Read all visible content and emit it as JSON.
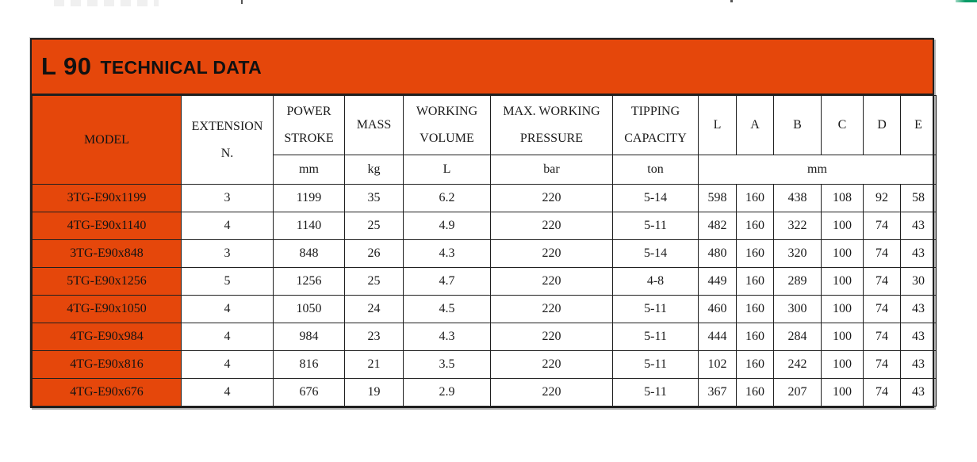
{
  "title": {
    "model": "L 90",
    "label": "TECHNICAL DATA"
  },
  "colors": {
    "accent_orange": "#E5470B",
    "grid_dark": "#1F1F1F",
    "row_separator": "#555555",
    "ink": "#1A1A1A",
    "artifact_green": "#0A9B67",
    "artifact_faint": "#ECECEC",
    "artifact_tick": "#555555"
  },
  "table": {
    "header": {
      "model": "MODEL",
      "extension": "EXTENSION N.",
      "groups": [
        {
          "label": "POWER STROKE",
          "unit": "mm"
        },
        {
          "label": "MASS",
          "unit": "kg"
        },
        {
          "label": "WORKING VOLUME",
          "unit": "L"
        },
        {
          "label": "MAX. WORKING PRESSURE",
          "unit": "bar"
        },
        {
          "label": "TIPPING CAPACITY",
          "unit": "ton"
        }
      ],
      "dims": [
        "L",
        "A",
        "B",
        "C",
        "D",
        "E"
      ],
      "dims_unit": "mm"
    },
    "rows": [
      {
        "model": "3TG-E90x1199",
        "extension": "3",
        "power_stroke": "1199",
        "mass": "35",
        "working_volume": "6.2",
        "max_working_pressure": "220",
        "tipping_capacity": "5-14",
        "dims": [
          "598",
          "160",
          "438",
          "108",
          "92",
          "58"
        ]
      },
      {
        "model": "4TG-E90x1140",
        "extension": "4",
        "power_stroke": "1140",
        "mass": "25",
        "working_volume": "4.9",
        "max_working_pressure": "220",
        "tipping_capacity": "5-11",
        "dims": [
          "482",
          "160",
          "322",
          "100",
          "74",
          "43"
        ]
      },
      {
        "model": "3TG-E90x848",
        "extension": "3",
        "power_stroke": "848",
        "mass": "26",
        "working_volume": "4.3",
        "max_working_pressure": "220",
        "tipping_capacity": "5-14",
        "dims": [
          "480",
          "160",
          "320",
          "100",
          "74",
          "43"
        ]
      },
      {
        "model": "5TG-E90x1256",
        "extension": "5",
        "power_stroke": "1256",
        "mass": "25",
        "working_volume": "4.7",
        "max_working_pressure": "220",
        "tipping_capacity": "4-8",
        "dims": [
          "449",
          "160",
          "289",
          "100",
          "74",
          "30"
        ]
      },
      {
        "model": "4TG-E90x1050",
        "extension": "4",
        "power_stroke": "1050",
        "mass": "24",
        "working_volume": "4.5",
        "max_working_pressure": "220",
        "tipping_capacity": "5-11",
        "dims": [
          "460",
          "160",
          "300",
          "100",
          "74",
          "43"
        ]
      },
      {
        "model": "4TG-E90x984",
        "extension": "4",
        "power_stroke": "984",
        "mass": "23",
        "working_volume": "4.3",
        "max_working_pressure": "220",
        "tipping_capacity": "5-11",
        "dims": [
          "444",
          "160",
          "284",
          "100",
          "74",
          "43"
        ]
      },
      {
        "model": "4TG-E90x816",
        "extension": "4",
        "power_stroke": "816",
        "mass": "21",
        "working_volume": "3.5",
        "max_working_pressure": "220",
        "tipping_capacity": "5-11",
        "dims": [
          "102",
          "160",
          "242",
          "100",
          "74",
          "43"
        ]
      },
      {
        "model": "4TG-E90x676",
        "extension": "4",
        "power_stroke": "676",
        "mass": "19",
        "working_volume": "2.9",
        "max_working_pressure": "220",
        "tipping_capacity": "5-11",
        "dims": [
          "367",
          "160",
          "207",
          "100",
          "74",
          "43"
        ]
      }
    ]
  }
}
